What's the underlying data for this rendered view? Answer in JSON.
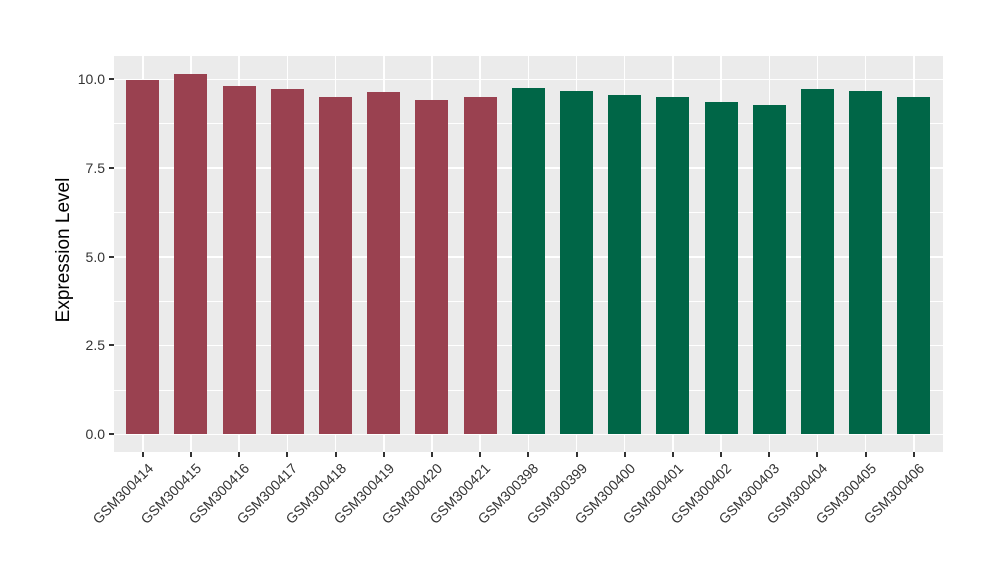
{
  "figure": {
    "background": "#FFFFFF"
  },
  "colors": {
    "panel_background": "#EBEBEB",
    "gridline": "#FFFFFF",
    "tick_and_label_text": "#333333",
    "axis_title_text": "#000000",
    "bar_group_red": "#9A4150",
    "bar_group_green": "#006647"
  },
  "chart_data": {
    "type": "bar",
    "title": "",
    "xlabel": "",
    "ylabel": "Expression Level",
    "ylim": [
      0,
      10.13
    ],
    "axis_range_with_expansion": [
      -0.51,
      10.63
    ],
    "yticks": [
      0,
      2.5,
      5,
      7.5,
      10
    ],
    "ytick_labels": [
      "0.0",
      "2.5",
      "5.0",
      "7.5",
      "10.0"
    ],
    "yticks_minor": [
      1.25,
      3.75,
      6.25,
      8.75
    ],
    "grid": "on",
    "legend": "none",
    "x_label_rotation_deg": 45,
    "categories": [
      "GSM300414",
      "GSM300415",
      "GSM300416",
      "GSM300417",
      "GSM300418",
      "GSM300419",
      "GSM300420",
      "GSM300421",
      "GSM300398",
      "GSM300399",
      "GSM300400",
      "GSM300401",
      "GSM300402",
      "GSM300403",
      "GSM300404",
      "GSM300405",
      "GSM300406"
    ],
    "bars": [
      {
        "label": "GSM300414",
        "value": 9.97,
        "color": "#9A4150",
        "group": "red"
      },
      {
        "label": "GSM300415",
        "value": 10.13,
        "color": "#9A4150",
        "group": "red"
      },
      {
        "label": "GSM300416",
        "value": 9.8,
        "color": "#9A4150",
        "group": "red"
      },
      {
        "label": "GSM300417",
        "value": 9.73,
        "color": "#9A4150",
        "group": "red"
      },
      {
        "label": "GSM300418",
        "value": 9.48,
        "color": "#9A4150",
        "group": "red"
      },
      {
        "label": "GSM300419",
        "value": 9.64,
        "color": "#9A4150",
        "group": "red"
      },
      {
        "label": "GSM300420",
        "value": 9.41,
        "color": "#9A4150",
        "group": "red"
      },
      {
        "label": "GSM300421",
        "value": 9.49,
        "color": "#9A4150",
        "group": "red"
      },
      {
        "label": "GSM300398",
        "value": 9.75,
        "color": "#006647",
        "group": "green"
      },
      {
        "label": "GSM300399",
        "value": 9.65,
        "color": "#006647",
        "group": "green"
      },
      {
        "label": "GSM300400",
        "value": 9.56,
        "color": "#006647",
        "group": "green"
      },
      {
        "label": "GSM300401",
        "value": 9.48,
        "color": "#006647",
        "group": "green"
      },
      {
        "label": "GSM300402",
        "value": 9.34,
        "color": "#006647",
        "group": "green"
      },
      {
        "label": "GSM300403",
        "value": 9.28,
        "color": "#006647",
        "group": "green"
      },
      {
        "label": "GSM300404",
        "value": 9.72,
        "color": "#006647",
        "group": "green"
      },
      {
        "label": "GSM300405",
        "value": 9.67,
        "color": "#006647",
        "group": "green"
      },
      {
        "label": "GSM300406",
        "value": 9.49,
        "color": "#006647",
        "group": "green"
      }
    ]
  }
}
